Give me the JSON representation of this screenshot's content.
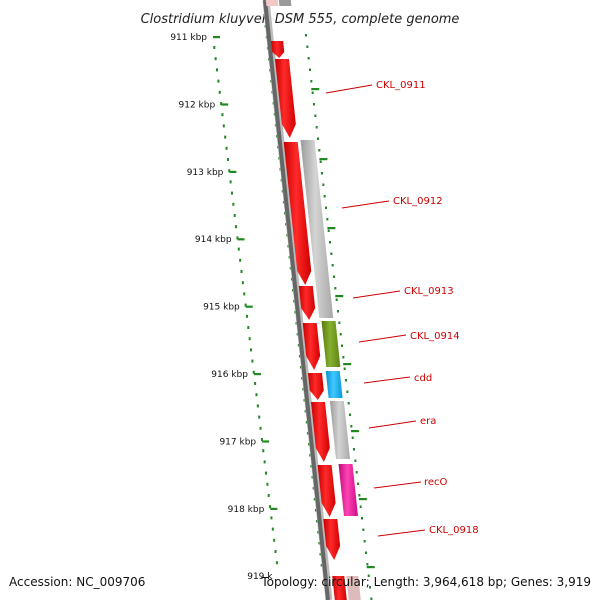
{
  "title": "Clostridium kluyveri DSM 555, complete genome",
  "footer": {
    "accession": "Accession: NC_009706",
    "summary": "Topology: circular; Length: 3,964,618 bp; Genes: 3,919"
  },
  "ruler": {
    "ticks": [
      "911 kbp",
      "912 kbp",
      "913 kbp",
      "914 kbp",
      "915 kbp",
      "916 kbp",
      "917 kbp",
      "918 kbp",
      "919 k"
    ],
    "tick_color": "#228822"
  },
  "genes": [
    {
      "label": "CKL_0911",
      "color": "#ff0000",
      "strand": "minus"
    },
    {
      "label": "CKL_0912",
      "color": "#ff0000",
      "strand": "minus"
    },
    {
      "label": "CKL_0913",
      "color": "#ff0000",
      "strand": "minus"
    },
    {
      "label": "CKL_0914",
      "color": "#ff0000",
      "strand": "minus"
    },
    {
      "label": "cdd",
      "color": "#ff0000",
      "strand": "minus"
    },
    {
      "label": "era",
      "color": "#ff0000",
      "strand": "minus"
    },
    {
      "label": "recO",
      "color": "#ff0000",
      "strand": "minus"
    },
    {
      "label": "CKL_0918",
      "color": "#ff0000",
      "strand": "minus"
    }
  ],
  "cog_colors": {
    "grey": "#b8b8b8",
    "olive": "#6e9a20",
    "cyan": "#1ab0f0",
    "magenta": "#ee1c9c"
  }
}
